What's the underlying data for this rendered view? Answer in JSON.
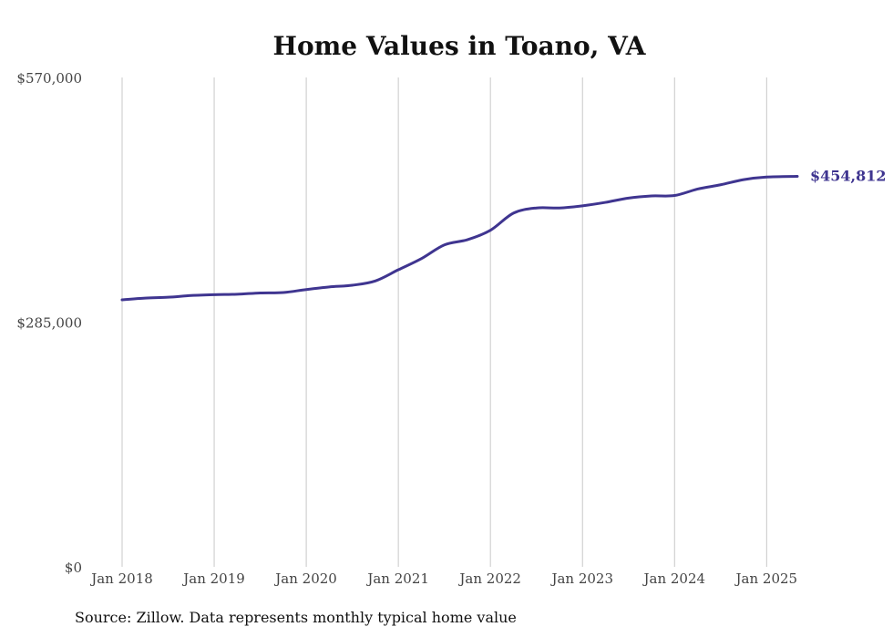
{
  "chart_data": {
    "type": "line",
    "title": "Home Values in Toano, VA",
    "xlabel": "",
    "ylabel": "",
    "ylim": [
      0,
      570000
    ],
    "yticks": [
      0,
      285000,
      570000
    ],
    "ytick_labels": [
      "$0",
      "$285,000",
      "$570,000"
    ],
    "xlim": [
      "2018-01",
      "2025-05"
    ],
    "xticks": [
      "2018-01",
      "2019-01",
      "2020-01",
      "2021-01",
      "2022-01",
      "2023-01",
      "2024-01",
      "2025-01"
    ],
    "xtick_labels": [
      "Jan 2018",
      "Jan 2019",
      "Jan 2020",
      "Jan 2021",
      "Jan 2022",
      "Jan 2023",
      "Jan 2024",
      "Jan 2025"
    ],
    "grid": "vertical",
    "series": [
      {
        "color": "#3f3590",
        "points": [
          {
            "x": "2018-01",
            "y": 311000
          },
          {
            "x": "2018-04",
            "y": 313000
          },
          {
            "x": "2018-07",
            "y": 314000
          },
          {
            "x": "2018-10",
            "y": 316000
          },
          {
            "x": "2019-01",
            "y": 317000
          },
          {
            "x": "2019-04",
            "y": 317500
          },
          {
            "x": "2019-07",
            "y": 319000
          },
          {
            "x": "2019-10",
            "y": 319500
          },
          {
            "x": "2020-01",
            "y": 323000
          },
          {
            "x": "2020-04",
            "y": 326000
          },
          {
            "x": "2020-07",
            "y": 328000
          },
          {
            "x": "2020-10",
            "y": 333000
          },
          {
            "x": "2021-01",
            "y": 346000
          },
          {
            "x": "2021-04",
            "y": 359000
          },
          {
            "x": "2021-07",
            "y": 375000
          },
          {
            "x": "2021-10",
            "y": 381000
          },
          {
            "x": "2022-01",
            "y": 392000
          },
          {
            "x": "2022-04",
            "y": 412000
          },
          {
            "x": "2022-07",
            "y": 418000
          },
          {
            "x": "2022-10",
            "y": 418000
          },
          {
            "x": "2023-01",
            "y": 420500
          },
          {
            "x": "2023-04",
            "y": 424500
          },
          {
            "x": "2023-07",
            "y": 429500
          },
          {
            "x": "2023-10",
            "y": 432000
          },
          {
            "x": "2024-01",
            "y": 432500
          },
          {
            "x": "2024-04",
            "y": 440000
          },
          {
            "x": "2024-07",
            "y": 445000
          },
          {
            "x": "2024-10",
            "y": 451000
          },
          {
            "x": "2025-01",
            "y": 454000
          },
          {
            "x": "2025-05",
            "y": 454812
          }
        ],
        "end_label": "$454,812"
      }
    ]
  },
  "footer": {
    "source": "Source: Zillow. Data represents monthly typical home value"
  }
}
